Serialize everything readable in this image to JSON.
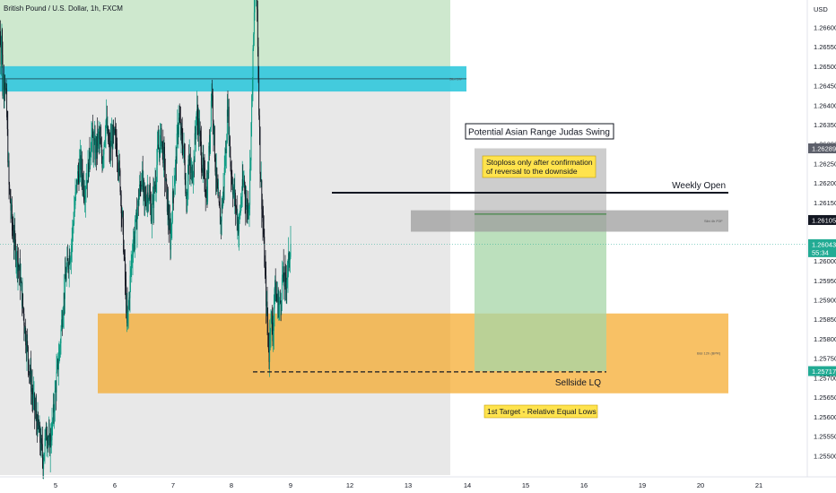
{
  "header": {
    "title": "British Pound / U.S. Dollar, 1h, FXCM"
  },
  "colors": {
    "up": "#089981",
    "down": "#131722",
    "premium_zone": "#c9e8c9",
    "weekly_fvg": "#26c6da",
    "history_shade": "#d6d6d6",
    "h4_fvg": "#9e9e9e",
    "h12_bpr": "#f5a623",
    "projection_target": "#a5d6a7",
    "projection_stop": "#c4c4c4",
    "note_box": "#ffe34d",
    "price_tag_dark": "#131722",
    "price_tag_green": "#22ab94"
  },
  "chart_data": {
    "type": "candlestick",
    "title": "British Pound / U.S. Dollar, 1h, FXCM",
    "y_axis": {
      "unit": "USD",
      "range": [
        1.2545,
        1.2667
      ],
      "ticks": [
        "1.26600",
        "1.26550",
        "1.26500",
        "1.26450",
        "1.26400",
        "1.26350",
        "1.26300",
        "1.26250",
        "1.26200",
        "1.26150",
        "1.26100",
        "1.26050",
        "1.26000",
        "1.25950",
        "1.25900",
        "1.25850",
        "1.25800",
        "1.25750",
        "1.25700",
        "1.25650",
        "1.25600",
        "1.25550",
        "1.25500"
      ],
      "position": "right"
    },
    "x_axis": {
      "ticks": [
        "5",
        "6",
        "7",
        "8",
        "9",
        "12",
        "13",
        "14",
        "15",
        "16",
        "19",
        "20",
        "21"
      ]
    },
    "price_tags": [
      {
        "value": "1.26289",
        "style": "gray"
      },
      {
        "value": "1.26105",
        "style": "dark"
      },
      {
        "value": "1.26043",
        "countdown": "55:34",
        "style": "green"
      },
      {
        "value": "1.25717",
        "style": "green"
      }
    ],
    "zones": [
      {
        "label": "",
        "top": 1.2673,
        "bottom": 1.265,
        "color": "premium_zone"
      },
      {
        "label": "Sibi 1W",
        "top": 1.265,
        "bottom": 1.26435,
        "color": "weekly_fvg"
      },
      {
        "label": "Sibi 4h P2F",
        "top": 1.2613,
        "bottom": 1.26075,
        "color": "h4_fvg"
      },
      {
        "label": "Bisi 12h (BPR)",
        "top": 1.25865,
        "bottom": 1.2566,
        "color": "h12_bpr"
      }
    ],
    "levels": [
      {
        "label": "Weekly Open",
        "value": 1.26175
      },
      {
        "label": "Sellside LQ",
        "value": 1.25715
      }
    ],
    "annotations": {
      "swing": "Potential Asian Range Judas Swing",
      "stop_note": "Stoploss only after confirmation of reversal to the downside",
      "target_note": "1st Target - Relative Equal Lows"
    },
    "projection": {
      "entry": 1.2612,
      "stop": 1.26289,
      "target": 1.25717
    },
    "price_path": [
      [
        1.2659,
        0
      ],
      [
        1.2652,
        1
      ],
      [
        1.266,
        2
      ],
      [
        1.2644,
        3
      ],
      [
        1.2648,
        5
      ],
      [
        1.2641,
        7
      ],
      [
        1.2619,
        10
      ],
      [
        1.2608,
        14
      ],
      [
        1.2602,
        18
      ],
      [
        1.2597,
        22
      ],
      [
        1.2582,
        28
      ],
      [
        1.2574,
        32
      ],
      [
        1.2566,
        36
      ],
      [
        1.256,
        40
      ],
      [
        1.2555,
        44
      ],
      [
        1.2549,
        48
      ],
      [
        1.2553,
        50
      ],
      [
        1.2557,
        52
      ],
      [
        1.2552,
        55
      ],
      [
        1.2557,
        58
      ],
      [
        1.2562,
        60
      ],
      [
        1.257,
        63
      ],
      [
        1.2576,
        66
      ],
      [
        1.2588,
        70
      ],
      [
        1.2595,
        73
      ],
      [
        1.26,
        76
      ],
      [
        1.2603,
        79
      ],
      [
        1.2611,
        82
      ],
      [
        1.2621,
        86
      ],
      [
        1.2625,
        90
      ],
      [
        1.2618,
        94
      ],
      [
        1.2623,
        98
      ],
      [
        1.2632,
        102
      ],
      [
        1.2628,
        106
      ],
      [
        1.2632,
        110
      ],
      [
        1.2626,
        114
      ],
      [
        1.2636,
        118
      ],
      [
        1.2628,
        122
      ],
      [
        1.2632,
        126
      ],
      [
        1.263,
        130
      ],
      [
        1.262,
        134
      ],
      [
        1.2608,
        137
      ],
      [
        1.2592,
        140
      ],
      [
        1.2583,
        142
      ],
      [
        1.2595,
        145
      ],
      [
        1.2604,
        148
      ],
      [
        1.2608,
        151
      ],
      [
        1.2617,
        155
      ],
      [
        1.2622,
        158
      ],
      [
        1.2615,
        161
      ],
      [
        1.2618,
        165
      ],
      [
        1.2612,
        169
      ],
      [
        1.262,
        173
      ],
      [
        1.2628,
        176
      ],
      [
        1.2632,
        180
      ],
      [
        1.2625,
        183
      ],
      [
        1.2613,
        187
      ],
      [
        1.2605,
        190
      ],
      [
        1.2618,
        193
      ],
      [
        1.2625,
        196
      ],
      [
        1.2637,
        199
      ],
      [
        1.2632,
        202
      ],
      [
        1.2628,
        205
      ],
      [
        1.2615,
        208
      ],
      [
        1.2626,
        210
      ],
      [
        1.2622,
        213
      ],
      [
        1.2625,
        216
      ],
      [
        1.2638,
        219
      ],
      [
        1.2634,
        222
      ],
      [
        1.2626,
        225
      ],
      [
        1.262,
        228
      ],
      [
        1.2618,
        231
      ],
      [
        1.2633,
        234
      ],
      [
        1.2645,
        236
      ],
      [
        1.2635,
        238
      ],
      [
        1.2625,
        240
      ],
      [
        1.2615,
        243
      ],
      [
        1.261,
        246
      ],
      [
        1.2618,
        249
      ],
      [
        1.263,
        252
      ],
      [
        1.264,
        254
      ],
      [
        1.2625,
        257
      ],
      [
        1.2618,
        260
      ],
      [
        1.2614,
        263
      ],
      [
        1.2608,
        266
      ],
      [
        1.2616,
        269
      ],
      [
        1.2621,
        272
      ],
      [
        1.2613,
        275
      ],
      [
        1.2616,
        278
      ],
      [
        1.2635,
        280
      ],
      [
        1.2652,
        282
      ],
      [
        1.2668,
        284
      ],
      [
        1.2673,
        286
      ],
      [
        1.2648,
        288
      ],
      [
        1.2625,
        290
      ],
      [
        1.261,
        293
      ],
      [
        1.2594,
        296
      ],
      [
        1.2584,
        298
      ],
      [
        1.2576,
        300
      ],
      [
        1.2588,
        302
      ],
      [
        1.258,
        304
      ],
      [
        1.2593,
        306
      ],
      [
        1.259,
        309
      ],
      [
        1.2588,
        312
      ],
      [
        1.2596,
        315
      ],
      [
        1.2594,
        318
      ],
      [
        1.2598,
        321
      ],
      [
        1.2605,
        324
      ]
    ]
  }
}
